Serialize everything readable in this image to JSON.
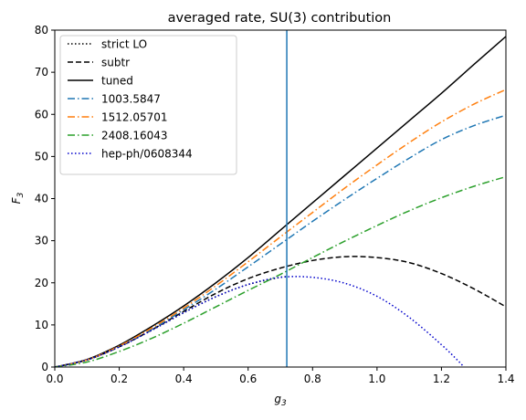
{
  "chart_data": {
    "type": "line",
    "title": "averaged rate, SU(3) contribution",
    "xlabel": "g3",
    "ylabel": "F3",
    "xlim": [
      0.0,
      1.4
    ],
    "ylim": [
      0,
      80
    ],
    "xticks": [
      0.0,
      0.2,
      0.4,
      0.6,
      0.8,
      1.0,
      1.2,
      1.4
    ],
    "xtick_labels": [
      "0.0",
      "0.2",
      "0.4",
      "0.6",
      "0.8",
      "1.0",
      "1.2",
      "1.4"
    ],
    "yticks": [
      0,
      10,
      20,
      30,
      40,
      50,
      60,
      70,
      80
    ],
    "ytick_labels": [
      "0",
      "10",
      "20",
      "30",
      "40",
      "50",
      "60",
      "70",
      "80"
    ],
    "grid": false,
    "legend_position": "upper-left",
    "vline": {
      "x": 0.72,
      "color": "#1f77b4"
    },
    "x": [
      0.0,
      0.1,
      0.2,
      0.3,
      0.4,
      0.5,
      0.6,
      0.7,
      0.8,
      0.9,
      1.0,
      1.1,
      1.2,
      1.3,
      1.4
    ],
    "series": [
      {
        "name": "strict LO",
        "color": "#000000",
        "style": "dotted",
        "x": [
          0.0,
          0.1,
          0.2,
          0.3,
          0.4,
          0.5,
          0.6,
          0.7,
          0.72
        ],
        "values": [
          0.0,
          1.7,
          4.8,
          8.7,
          12.9,
          16.7,
          19.6,
          21.3,
          21.4
        ]
      },
      {
        "name": "subtr",
        "color": "#000000",
        "style": "dashed",
        "x": [
          0.0,
          0.1,
          0.2,
          0.3,
          0.4,
          0.5,
          0.6,
          0.7,
          0.8,
          0.9,
          1.0,
          1.1,
          1.2,
          1.3,
          1.4
        ],
        "values": [
          0.0,
          1.7,
          4.8,
          8.8,
          13.2,
          17.5,
          21.0,
          23.5,
          25.3,
          26.2,
          26.0,
          24.8,
          22.2,
          18.6,
          14.3
        ]
      },
      {
        "name": "tuned",
        "color": "#000000",
        "style": "solid",
        "x": [
          0.0,
          0.1,
          0.2,
          0.3,
          0.4,
          0.5,
          0.6,
          0.7,
          0.8,
          0.9,
          1.0,
          1.1,
          1.2,
          1.3,
          1.4
        ],
        "values": [
          0.0,
          1.8,
          5.2,
          9.6,
          14.5,
          20.0,
          26.0,
          32.5,
          39.0,
          45.5,
          52.0,
          58.5,
          65.0,
          71.8,
          78.5
        ]
      },
      {
        "name": "1003.5847",
        "color": "#1f77b4",
        "style": "dashdot",
        "x": [
          0.0,
          0.1,
          0.2,
          0.3,
          0.4,
          0.5,
          0.6,
          0.7,
          0.8,
          0.9,
          1.0,
          1.1,
          1.2,
          1.3,
          1.4
        ],
        "values": [
          0.0,
          1.7,
          4.9,
          8.9,
          13.6,
          18.5,
          23.8,
          29.2,
          34.6,
          39.8,
          44.8,
          49.6,
          54.0,
          57.3,
          59.8
        ]
      },
      {
        "name": "1512.05701",
        "color": "#ff7f0e",
        "style": "dashdot",
        "x": [
          0.0,
          0.1,
          0.2,
          0.3,
          0.4,
          0.5,
          0.6,
          0.7,
          0.8,
          0.9,
          1.0,
          1.1,
          1.2,
          1.3,
          1.4
        ],
        "values": [
          0.0,
          1.7,
          5.0,
          9.2,
          14.0,
          19.3,
          25.0,
          30.9,
          36.7,
          42.5,
          48.0,
          53.3,
          58.2,
          62.4,
          65.9
        ]
      },
      {
        "name": "2408.16043",
        "color": "#2ca02c",
        "style": "dashdot",
        "x": [
          0.0,
          0.1,
          0.2,
          0.3,
          0.4,
          0.5,
          0.6,
          0.7,
          0.8,
          0.9,
          1.0,
          1.1,
          1.2,
          1.3,
          1.4
        ],
        "values": [
          0.0,
          1.2,
          3.7,
          6.8,
          10.4,
          14.3,
          18.2,
          22.0,
          26.0,
          29.9,
          33.6,
          37.1,
          40.2,
          42.9,
          45.2
        ]
      },
      {
        "name": "hep-ph/0608344",
        "color": "#0000cc",
        "style": "dotted",
        "x": [
          0.0,
          0.1,
          0.2,
          0.3,
          0.4,
          0.5,
          0.6,
          0.7,
          0.8,
          0.9,
          1.0,
          1.1,
          1.2,
          1.25,
          1.27
        ],
        "values": [
          0.0,
          1.7,
          4.8,
          8.7,
          12.9,
          16.7,
          19.6,
          21.3,
          21.3,
          19.9,
          16.8,
          11.8,
          5.3,
          1.6,
          0.0
        ]
      }
    ]
  }
}
